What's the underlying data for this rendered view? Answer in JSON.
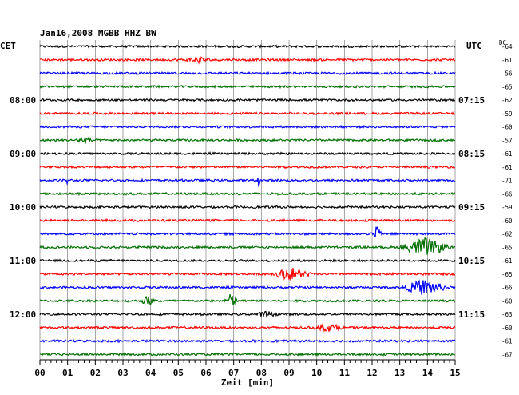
{
  "chart_data": {
    "type": "line",
    "title": "Jan16,2008   MGBB HHZ BW",
    "left_timezone": "CET",
    "right_timezone": "UTC",
    "dc_header": "DC",
    "xlabel": "Zeit [min]",
    "xlim": [
      0,
      15
    ],
    "x_ticks": [
      "00",
      "01",
      "02",
      "03",
      "04",
      "05",
      "06",
      "07",
      "08",
      "09",
      "10",
      "11",
      "12",
      "13",
      "14",
      "15"
    ],
    "grid": true,
    "trace_colors": [
      "#000000",
      "#ff0000",
      "#0000ff",
      "#007000"
    ],
    "left_hour_labels": [
      {
        "label": "08:00",
        "trace": 4
      },
      {
        "label": "09:00",
        "trace": 8
      },
      {
        "label": "10:00",
        "trace": 12
      },
      {
        "label": "11:00",
        "trace": 16
      },
      {
        "label": "12:00",
        "trace": 20
      }
    ],
    "right_hour_labels": [
      {
        "label": "07:15",
        "trace": 4
      },
      {
        "label": "08:15",
        "trace": 8
      },
      {
        "label": "09:15",
        "trace": 12
      },
      {
        "label": "10:15",
        "trace": 16
      },
      {
        "label": "11:15",
        "trace": 20
      }
    ],
    "dc_offsets": [
      -64,
      -61,
      -56,
      -65,
      -62,
      -59,
      -60,
      -57,
      -61,
      -61,
      -71,
      -66,
      -59,
      -60,
      -62,
      -65,
      -61,
      -65,
      -66,
      -60,
      -63,
      -60,
      -61,
      -67
    ],
    "events": [
      {
        "trace": 1,
        "minute": 5.7,
        "amp": 0.6,
        "dur": 0.5
      },
      {
        "trace": 7,
        "minute": 1.6,
        "amp": 0.6,
        "dur": 0.4
      },
      {
        "trace": 10,
        "minute": 1.0,
        "amp": 1.0,
        "dur": 0.05
      },
      {
        "trace": 10,
        "minute": 7.9,
        "amp": 1.2,
        "dur": 0.05
      },
      {
        "trace": 14,
        "minute": 12.2,
        "amp": 2.5,
        "dur": 0.15
      },
      {
        "trace": 15,
        "minute": 13.9,
        "amp": 1.8,
        "dur": 1.0
      },
      {
        "trace": 17,
        "minute": 9.1,
        "amp": 1.2,
        "dur": 0.8
      },
      {
        "trace": 18,
        "minute": 13.9,
        "amp": 1.6,
        "dur": 0.9
      },
      {
        "trace": 19,
        "minute": 3.9,
        "amp": 0.9,
        "dur": 0.3
      },
      {
        "trace": 19,
        "minute": 6.9,
        "amp": 1.4,
        "dur": 0.3
      },
      {
        "trace": 20,
        "minute": 8.2,
        "amp": 0.6,
        "dur": 0.4
      },
      {
        "trace": 21,
        "minute": 10.4,
        "amp": 0.7,
        "dur": 0.6
      }
    ]
  }
}
